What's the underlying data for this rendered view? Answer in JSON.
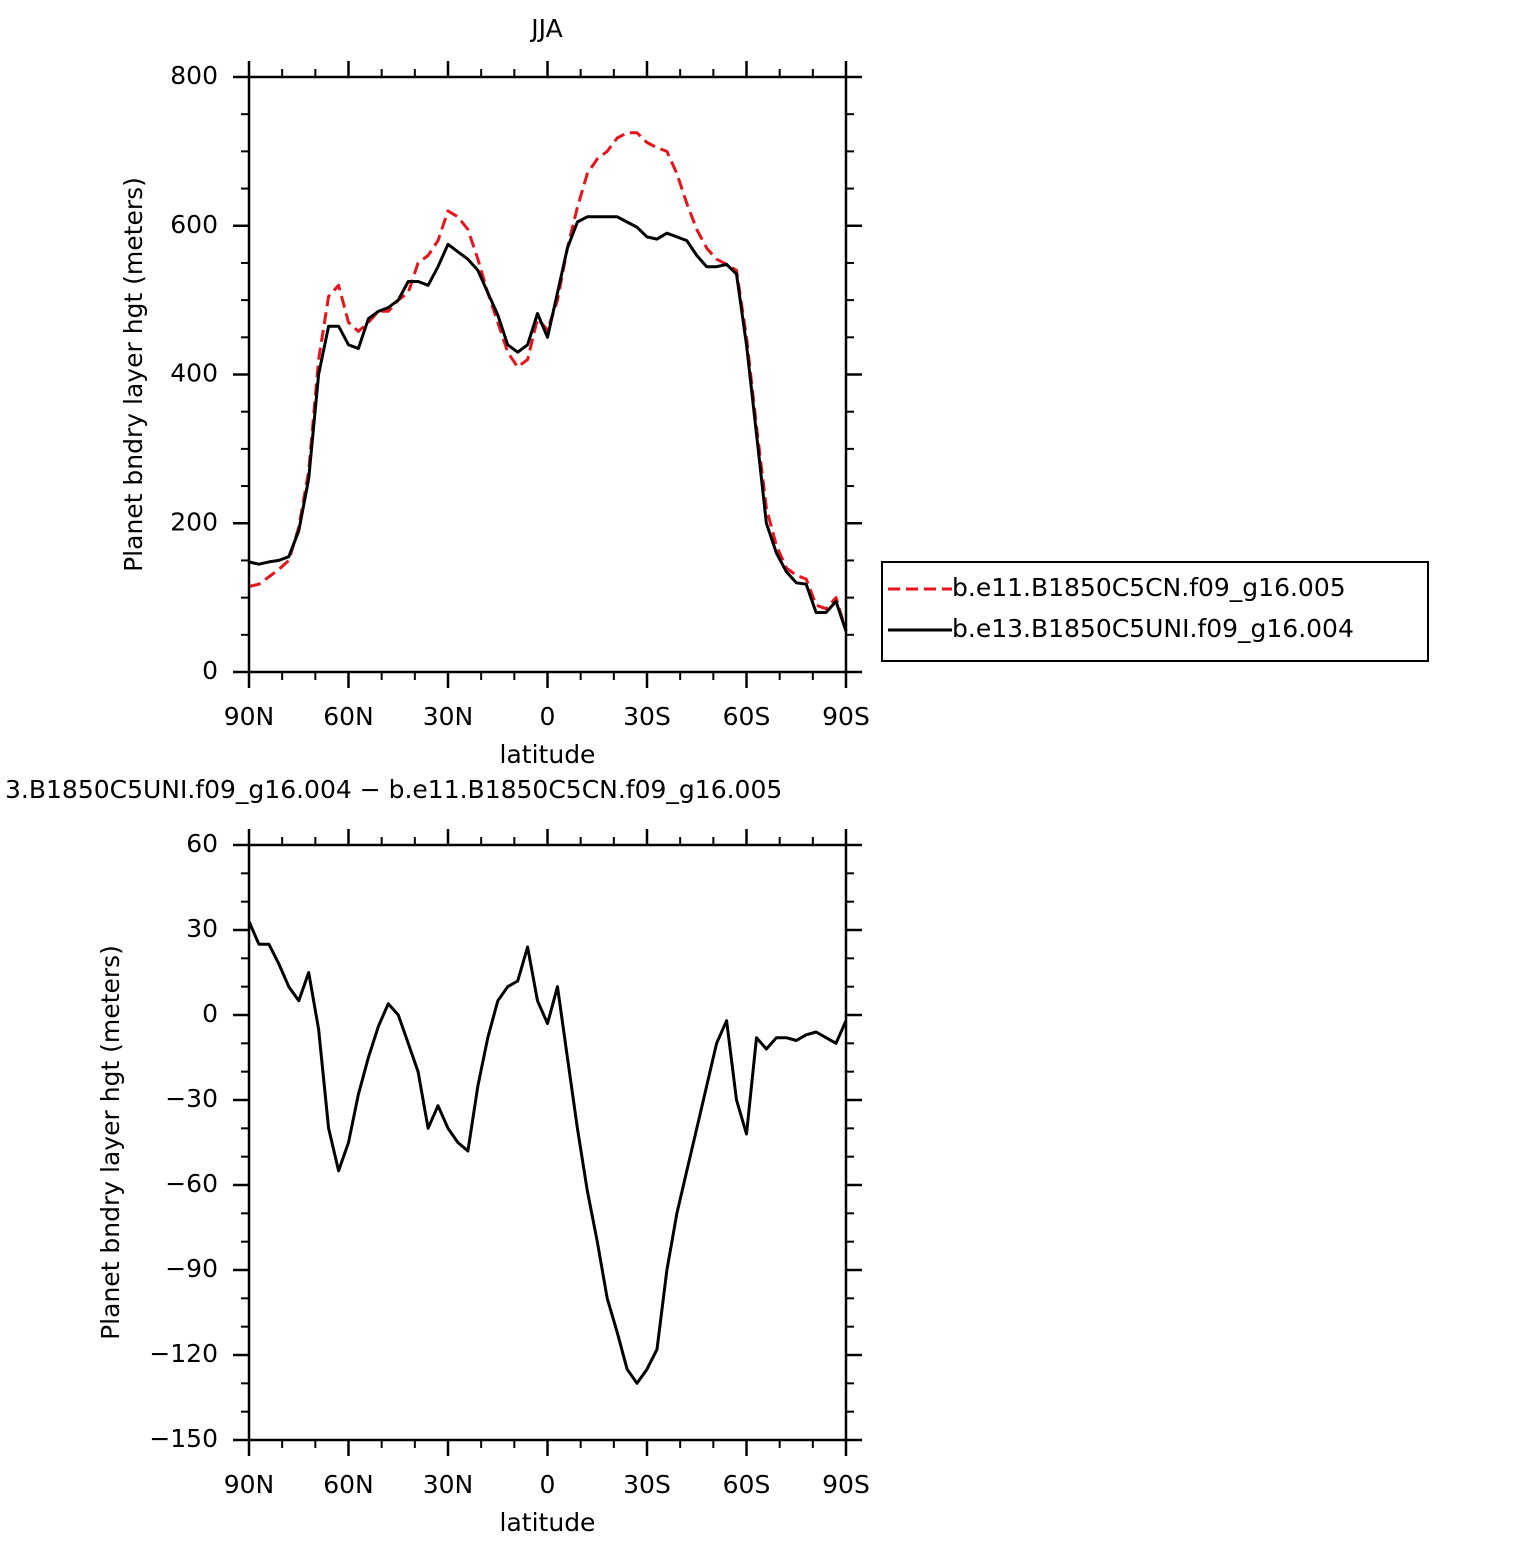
{
  "chart_data": [
    {
      "type": "line",
      "title": "JJA",
      "ylabel": "Planet bndry layer hgt (meters)",
      "xlabel": "latitude",
      "x": [
        90,
        87,
        84,
        81,
        78,
        75,
        72,
        69,
        66,
        63,
        60,
        57,
        54,
        51,
        48,
        45,
        42,
        39,
        36,
        33,
        30,
        27,
        24,
        21,
        18,
        15,
        12,
        9,
        6,
        3,
        0,
        -3,
        -6,
        -9,
        -12,
        -15,
        -18,
        -21,
        -24,
        -27,
        -30,
        -33,
        -36,
        -39,
        -42,
        -45,
        -48,
        -51,
        -54,
        -57,
        -60,
        -63,
        -66,
        -69,
        -72,
        -75,
        -78,
        -81,
        -84,
        -87,
        -90
      ],
      "xlim": [
        90,
        -90
      ],
      "xticks": [
        {
          "value": 90,
          "label": "90N"
        },
        {
          "value": 60,
          "label": "60N"
        },
        {
          "value": 30,
          "label": "30N"
        },
        0,
        {
          "value": -30,
          "label": "30S"
        },
        {
          "value": -60,
          "label": "60S"
        },
        {
          "value": -90,
          "label": "90S"
        }
      ],
      "ylim": [
        0,
        800
      ],
      "yticks": [
        0,
        200,
        400,
        600,
        800
      ],
      "series": [
        {
          "name": "b.e11.B1850C5CN.f09_g16.005",
          "color": "#e8141b",
          "style": "dashed",
          "values": [
            115,
            118,
            128,
            138,
            150,
            195,
            270,
            420,
            505,
            520,
            470,
            458,
            470,
            485,
            485,
            500,
            510,
            550,
            560,
            580,
            620,
            612,
            595,
            555,
            510,
            470,
            430,
            410,
            420,
            475,
            460,
            500,
            570,
            625,
            670,
            690,
            700,
            718,
            725,
            725,
            712,
            705,
            700,
            670,
            630,
            595,
            570,
            555,
            548,
            540,
            450,
            330,
            220,
            170,
            140,
            130,
            125,
            90,
            85,
            100,
            55
          ]
        },
        {
          "name": "b.e13.B1850C5UNI.f09_g16.004",
          "color": "#000000",
          "style": "solid",
          "values": [
            148,
            145,
            148,
            150,
            155,
            190,
            260,
            400,
            465,
            465,
            440,
            435,
            475,
            485,
            490,
            500,
            525,
            525,
            520,
            545,
            575,
            565,
            555,
            540,
            510,
            480,
            440,
            430,
            440,
            482,
            450,
            510,
            570,
            605,
            612,
            612,
            612,
            612,
            605,
            598,
            585,
            582,
            590,
            585,
            580,
            560,
            545,
            545,
            548,
            535,
            440,
            320,
            200,
            160,
            135,
            120,
            118,
            80,
            80,
            95,
            55
          ]
        }
      ]
    },
    {
      "type": "line",
      "title": "3.B1850C5UNI.f09_g16.004 − b.e11.B1850C5CN.f09_g16.005",
      "ylabel": "Planet bndry layer hgt (meters)",
      "xlabel": "latitude",
      "x": [
        90,
        87,
        84,
        81,
        78,
        75,
        72,
        69,
        66,
        63,
        60,
        57,
        54,
        51,
        48,
        45,
        42,
        39,
        36,
        33,
        30,
        27,
        24,
        21,
        18,
        15,
        12,
        9,
        6,
        3,
        0,
        -3,
        -6,
        -9,
        -12,
        -15,
        -18,
        -21,
        -24,
        -27,
        -30,
        -33,
        -36,
        -39,
        -42,
        -45,
        -48,
        -51,
        -54,
        -57,
        -60,
        -63,
        -66,
        -69,
        -72,
        -75,
        -78,
        -81,
        -84,
        -87,
        -90
      ],
      "xlim": [
        90,
        -90
      ],
      "xticks": [
        {
          "value": 90,
          "label": "90N"
        },
        {
          "value": 60,
          "label": "60N"
        },
        {
          "value": 30,
          "label": "30N"
        },
        0,
        {
          "value": -30,
          "label": "30S"
        },
        {
          "value": -60,
          "label": "60S"
        },
        {
          "value": -90,
          "label": "90S"
        }
      ],
      "ylim": [
        -150,
        60
      ],
      "yticks": [
        {
          "value": -150,
          "label": "−150"
        },
        {
          "value": -120,
          "label": "−120"
        },
        {
          "value": -90,
          "label": "−90"
        },
        {
          "value": -60,
          "label": "−60"
        },
        {
          "value": -30,
          "label": "−30"
        },
        0,
        30,
        60
      ],
      "series": [
        {
          "color": "#000000",
          "style": "solid",
          "values": [
            33,
            25,
            25,
            18,
            10,
            5,
            15,
            -5,
            -40,
            -55,
            -45,
            -28,
            -15,
            -4,
            4,
            0,
            -10,
            -20,
            -40,
            -32,
            -40,
            -45,
            -48,
            -25,
            -8,
            5,
            10,
            12,
            24,
            5,
            -3,
            10,
            -15,
            -40,
            -62,
            -80,
            -100,
            -112,
            -125,
            -130,
            -125,
            -118,
            -90,
            -70,
            -55,
            -40,
            -25,
            -10,
            -2,
            -30,
            -42,
            -8,
            -12,
            -8,
            -8,
            -9,
            -7,
            -6,
            -8,
            -10,
            -2
          ]
        }
      ]
    }
  ]
}
